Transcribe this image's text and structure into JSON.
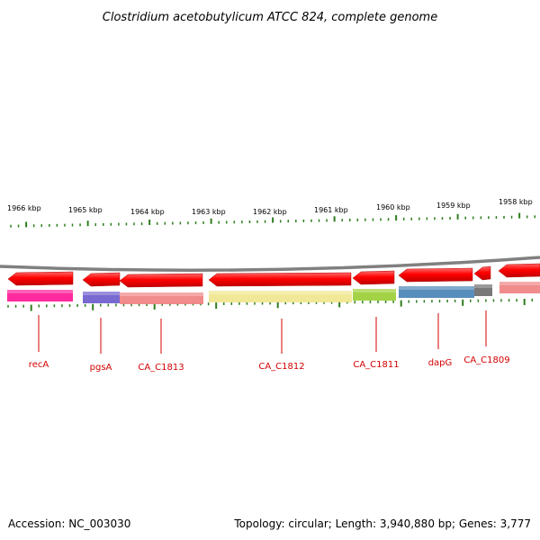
{
  "title": "Clostridium acetobutylicum ATCC 824, complete genome",
  "accession_text": "Accession: NC_003030",
  "summary_text": "Topology: circular; Length: 3,940,880 bp; Genes: 3,777",
  "scale_labels": [
    "1966 kbp",
    "1965 kbp",
    "1964 kbp",
    "1963 kbp",
    "1962 kbp",
    "1961 kbp",
    "1960 kbp",
    "1959 kbp",
    "1958 kbp"
  ],
  "genes": [
    {
      "id": "recA",
      "label": "recA",
      "strand": "reverse",
      "color": "#ff1493"
    },
    {
      "id": "pgsA",
      "label": "pgsA",
      "strand": "reverse",
      "color": "#6a5acd"
    },
    {
      "id": "CA_C1813",
      "label": "CA_C1813",
      "strand": "reverse",
      "color": "#f08080"
    },
    {
      "id": "CA_C1812",
      "label": "CA_C1812",
      "strand": "reverse",
      "color": "#f0e68c"
    },
    {
      "id": "CA_C1811",
      "label": "CA_C1811",
      "strand": "reverse",
      "color": "#9acd32"
    },
    {
      "id": "dapG",
      "label": "dapG",
      "strand": "reverse",
      "color": "#4682b4"
    },
    {
      "id": "CA_C1809",
      "label": "CA_C1809",
      "strand": "reverse",
      "color": "#696969"
    }
  ],
  "colors": {
    "gene_arrow": "#ff0000",
    "backbone": "#808080",
    "tick": "#2e7d1e",
    "label": "#d40000"
  }
}
